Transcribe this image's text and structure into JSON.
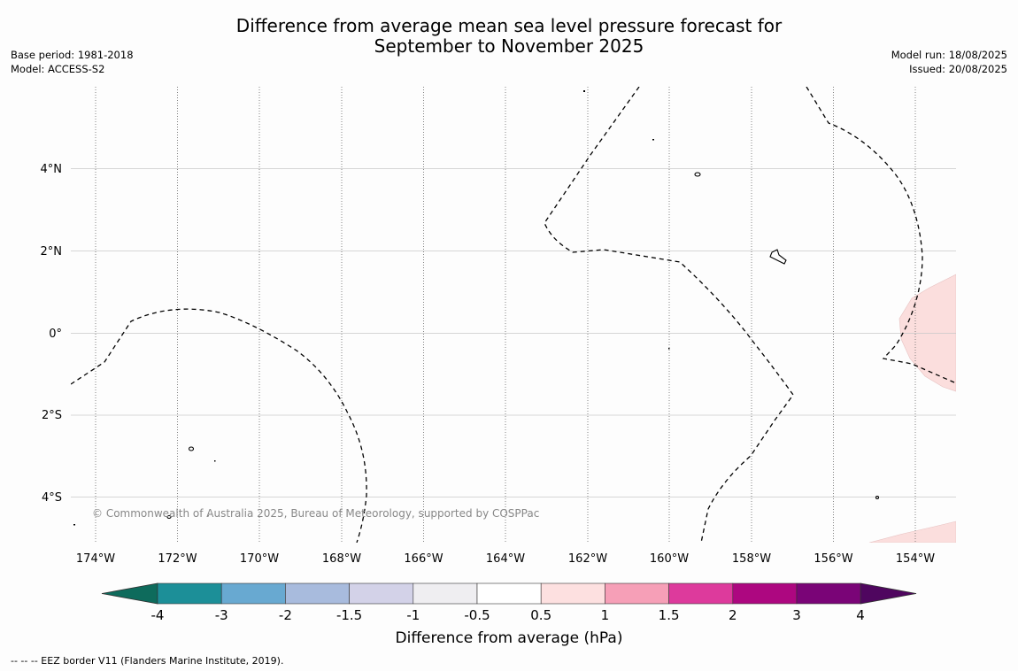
{
  "title_line1": "Difference from average mean sea level pressure forecast for",
  "title_line2": "September to November 2025",
  "base_period": "Base period: 1981-2018",
  "model": "Model: ACCESS-S2",
  "model_run": "Model run: 18/08/2025",
  "issued": "Issued: 20/08/2025",
  "copyright": "© Commonwealth of Australia 2025, Bureau of Meteorology, supported by COSPPac",
  "footer": "--  --  -- EEZ border V11 (Flanders Marine Institute, 2019).",
  "map": {
    "lon_ticks": [
      "174°W",
      "172°W",
      "170°W",
      "168°W",
      "166°W",
      "164°W",
      "162°W",
      "160°W",
      "158°W",
      "156°W",
      "154°W"
    ],
    "lat_ticks": [
      "4°N",
      "2°N",
      "0°",
      "2°S",
      "4°S"
    ],
    "extent": {
      "lon": [
        -174.6,
        -153.0
      ],
      "lat": [
        -5.0,
        5.9
      ]
    },
    "grid": true,
    "colors": {
      "pos_0_5_1": "#fbdedd",
      "background": "#ffffff"
    }
  },
  "colorbar": {
    "title": "Difference from average (hPa)",
    "ticks": [
      "-4",
      "-3",
      "-2",
      "-1.5",
      "-1",
      "-0.5",
      "0.5",
      "1",
      "1.5",
      "2",
      "3",
      "4"
    ],
    "colors": [
      "#0e6b5c",
      "#1c8f98",
      "#68a9d1",
      "#a8bbdd",
      "#d3d2e8",
      "#efeef1",
      "#ffffff",
      "#fde0e0",
      "#f69fb7",
      "#dd3a9c",
      "#ad0780",
      "#7a0477",
      "#4f065f"
    ]
  }
}
